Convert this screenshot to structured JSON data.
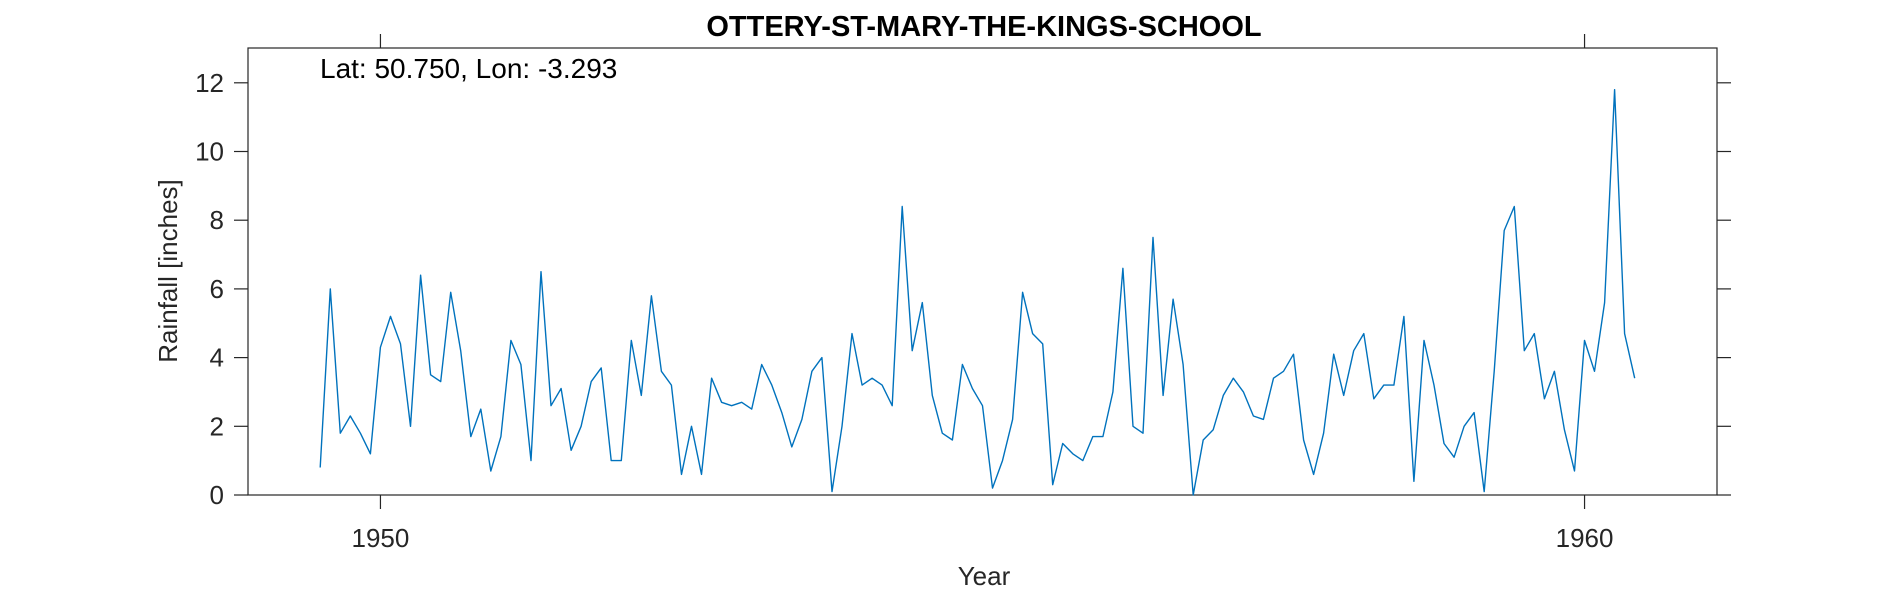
{
  "chart_data": {
    "type": "line",
    "title": "OTTERY-ST-MARY-THE-KINGS-SCHOOL",
    "xlabel": "Year",
    "ylabel": "Rainfall [inches]",
    "annotation": "Lat: 50.750, Lon: -3.293",
    "xlim": [
      1948.9,
      1961.1
    ],
    "ylim": [
      0,
      13
    ],
    "xticks": [
      1950,
      1960
    ],
    "xtick_labels": [
      "1950",
      "1960"
    ],
    "yticks": [
      0,
      2,
      4,
      6,
      8,
      10,
      12
    ],
    "ytick_labels": [
      "0",
      "2",
      "4",
      "6",
      "8",
      "10",
      "12"
    ],
    "grid": false,
    "line_color": "#0072BD",
    "series": [
      {
        "name": "Rainfall",
        "start_year": 1949.5,
        "step_years": 0.08333,
        "values": [
          0.8,
          6.0,
          1.8,
          2.3,
          1.8,
          1.2,
          4.3,
          5.2,
          4.4,
          2.0,
          6.4,
          3.5,
          3.3,
          5.9,
          4.2,
          1.7,
          2.5,
          0.7,
          1.7,
          4.5,
          3.8,
          1.0,
          6.5,
          2.6,
          3.1,
          1.3,
          2.0,
          3.3,
          3.7,
          1.0,
          1.0,
          4.5,
          2.9,
          5.8,
          3.6,
          3.2,
          0.6,
          2.0,
          0.6,
          3.4,
          2.7,
          2.6,
          2.7,
          2.5,
          3.8,
          3.2,
          2.4,
          1.4,
          2.2,
          3.6,
          4.0,
          0.1,
          2.0,
          4.7,
          3.2,
          3.4,
          3.2,
          2.6,
          8.4,
          4.2,
          5.6,
          2.9,
          1.8,
          1.6,
          3.8,
          3.1,
          2.6,
          0.2,
          1.0,
          2.2,
          5.9,
          4.7,
          4.4,
          0.3,
          1.5,
          1.2,
          1.0,
          1.7,
          1.7,
          3.0,
          6.6,
          2.0,
          1.8,
          7.5,
          2.9,
          5.7,
          3.8,
          0.0,
          1.6,
          1.9,
          2.9,
          3.4,
          3.0,
          2.3,
          2.2,
          3.4,
          3.6,
          4.1,
          1.6,
          0.6,
          1.8,
          4.1,
          2.9,
          4.2,
          4.7,
          2.8,
          3.2,
          3.2,
          5.2,
          0.4,
          4.5,
          3.2,
          1.5,
          1.1,
          2.0,
          2.4,
          0.1,
          3.6,
          7.7,
          8.4,
          4.2,
          4.7,
          2.8,
          3.6,
          1.9,
          0.7,
          4.5,
          3.6,
          5.6,
          11.8,
          4.7,
          3.4
        ]
      }
    ]
  }
}
